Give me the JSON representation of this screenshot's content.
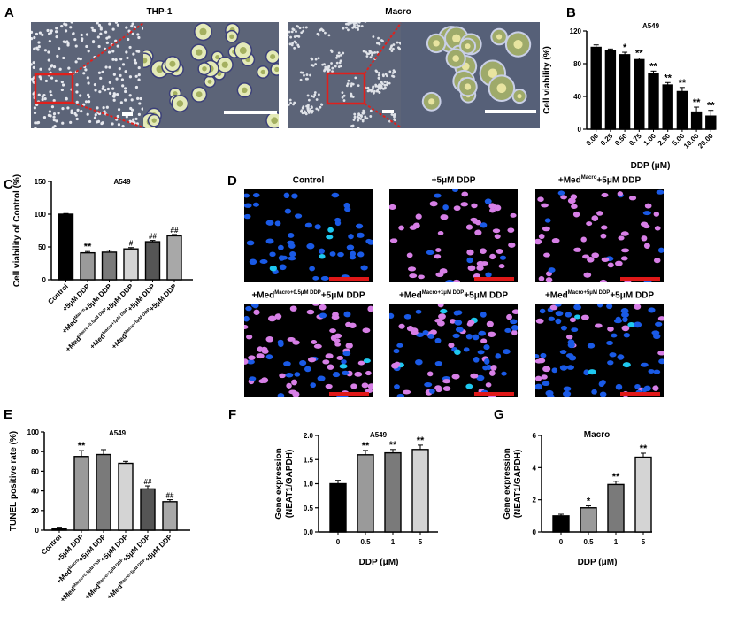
{
  "figure": {
    "panels": {
      "A": {
        "label": "A",
        "titles": [
          "THP-1",
          "Macro"
        ]
      },
      "B": {
        "label": "B"
      },
      "C": {
        "label": "C"
      },
      "D": {
        "label": "D",
        "titles": [
          {
            "main": "Control",
            "sup": "",
            "tail": ""
          },
          {
            "main": "+5μM DDP",
            "sup": "",
            "tail": ""
          },
          {
            "main": "+Med",
            "sup": "Macro",
            "tail": "+5μM DDP"
          },
          {
            "main": "+Med",
            "sup": "Macro+0.5μM DDP",
            "tail": "+5μM DDP"
          },
          {
            "main": "+Med",
            "sup": "Macro+1μM DDP",
            "tail": "+5μM DDP"
          },
          {
            "main": "+Med",
            "sup": "Macro+5μM DDP",
            "tail": "+5μM DDP"
          }
        ]
      },
      "E": {
        "label": "E"
      },
      "F": {
        "label": "F"
      },
      "G": {
        "label": "G"
      }
    }
  },
  "chart_data": [
    {
      "panel": "B",
      "type": "bar",
      "title": "A549",
      "xlabel": "DDP (μM)",
      "ylabel": "Cell viability (%)",
      "ylim": [
        0,
        120
      ],
      "yticks": [
        0,
        40,
        80,
        120
      ],
      "categories": [
        "0.00",
        "0.25",
        "0.50",
        "0.75",
        "1.00",
        "2.50",
        "5.00",
        "10.00",
        "20.00"
      ],
      "values": [
        100,
        96,
        91,
        85,
        68,
        54,
        46,
        21,
        16
      ],
      "errors": [
        3,
        2,
        3,
        2,
        3,
        3,
        5,
        6,
        7
      ],
      "annotations": [
        "",
        "",
        "*",
        "**",
        "**",
        "**",
        "**",
        "**",
        "**"
      ],
      "colors": [
        "#000000",
        "#000000",
        "#000000",
        "#000000",
        "#000000",
        "#000000",
        "#000000",
        "#000000",
        "#000000"
      ]
    },
    {
      "panel": "C",
      "type": "bar",
      "title": "A549",
      "xlabel": "",
      "ylabel": "Cell viability of Control (%)",
      "ylim": [
        0,
        150
      ],
      "yticks": [
        0,
        50,
        100,
        150
      ],
      "categories": [
        {
          "main": "Control",
          "sup": "",
          "tail": ""
        },
        {
          "main": "+5μM DDP",
          "sup": "",
          "tail": ""
        },
        {
          "main": "+Med",
          "sup": "Macro",
          "tail": "+5μM DDP"
        },
        {
          "main": "+Med",
          "sup": "Macro+0.5μM DDP",
          "tail": "+5μM DDP"
        },
        {
          "main": "+Med",
          "sup": "Macro+1μM DDP",
          "tail": "+5μM DDP"
        },
        {
          "main": "+Med",
          "sup": "Macro+5μM DDP",
          "tail": "+5μM DDP"
        }
      ],
      "values": [
        100,
        41,
        42,
        47,
        58,
        67
      ],
      "errors": [
        1,
        2,
        3,
        2,
        2,
        2
      ],
      "annotations": [
        "",
        "**",
        "",
        "#",
        "##",
        "##"
      ],
      "colors": [
        "#000000",
        "#9a9a9a",
        "#7a7a7a",
        "#d4d4d4",
        "#555555",
        "#a8a8a8"
      ]
    },
    {
      "panel": "E",
      "type": "bar",
      "title": "A549",
      "xlabel": "",
      "ylabel": "TUNEL positive rate  (%)",
      "ylim": [
        0,
        100
      ],
      "yticks": [
        0,
        20,
        40,
        60,
        80,
        100
      ],
      "categories": [
        {
          "main": "Control",
          "sup": "",
          "tail": ""
        },
        {
          "main": "+5μM DDP",
          "sup": "",
          "tail": ""
        },
        {
          "main": "+Med",
          "sup": "Macro",
          "tail": "+5μM DDP"
        },
        {
          "main": "+Med",
          "sup": "Macro+0.5μM DDP",
          "tail": "+5μM DDP"
        },
        {
          "main": "+Med",
          "sup": "Macro+1μM DDP",
          "tail": "+5μM DDP"
        },
        {
          "main": "+Med",
          "sup": "Macro+5μM DDP",
          "tail": "+5μM DDP"
        }
      ],
      "values": [
        2,
        75,
        77,
        68,
        42,
        29
      ],
      "errors": [
        1,
        6,
        5,
        2,
        3,
        2
      ],
      "annotations": [
        "",
        "**",
        "",
        "",
        "##",
        "##"
      ],
      "colors": [
        "#000000",
        "#9a9a9a",
        "#7a7a7a",
        "#d4d4d4",
        "#555555",
        "#a8a8a8"
      ]
    },
    {
      "panel": "F",
      "type": "bar",
      "title": "A549",
      "xlabel": "DDP (μM)",
      "ylabel": "Gene expression (NEAT1/GAPDH)",
      "ylabel_lines": [
        "Gene expression",
        "(NEAT1/GAPDH)"
      ],
      "ylim": [
        0,
        2.0
      ],
      "yticks": [
        "0.0",
        "0.5",
        "1.0",
        "1.5",
        "2.0"
      ],
      "categories": [
        "0",
        "0.5",
        "1",
        "5"
      ],
      "values": [
        1.0,
        1.6,
        1.64,
        1.71
      ],
      "errors": [
        0.07,
        0.09,
        0.07,
        0.09
      ],
      "annotations": [
        "",
        "**",
        "**",
        "**"
      ],
      "colors": [
        "#000000",
        "#9a9a9a",
        "#7a7a7a",
        "#d4d4d4"
      ]
    },
    {
      "panel": "G",
      "type": "bar",
      "title": "Macro",
      "xlabel": "DDP (μM)",
      "ylabel": "Gene expression (NEAT1/GAPDH)",
      "ylabel_lines": [
        "Gene expression",
        "(NEAT1/GAPDH)"
      ],
      "ylim": [
        0,
        6
      ],
      "yticks": [
        "0",
        "2",
        "4",
        "6"
      ],
      "categories": [
        "0",
        "0.5",
        "1",
        "5"
      ],
      "values": [
        1.0,
        1.5,
        2.95,
        4.65
      ],
      "errors": [
        0.1,
        0.12,
        0.2,
        0.25
      ],
      "annotations": [
        "",
        "*",
        "**",
        "**"
      ],
      "colors": [
        "#000000",
        "#9a9a9a",
        "#7a7a7a",
        "#d4d4d4"
      ]
    }
  ]
}
